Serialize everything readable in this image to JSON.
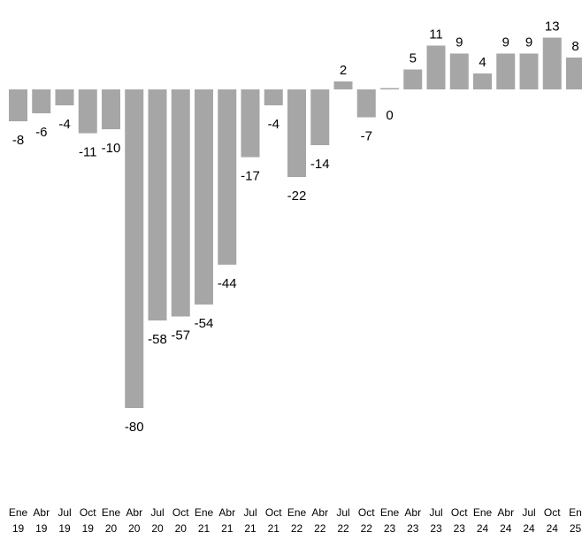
{
  "chart_data": {
    "type": "bar",
    "title": "",
    "xlabel": "",
    "ylabel": "",
    "grid": false,
    "legend": "none",
    "bar_color": "#a6a6a6",
    "categories": [
      [
        "Ene",
        "19"
      ],
      [
        "Abr",
        "19"
      ],
      [
        "Jul",
        "19"
      ],
      [
        "Oct",
        "19"
      ],
      [
        "Ene",
        "20"
      ],
      [
        "Abr",
        "20"
      ],
      [
        "Jul",
        "20"
      ],
      [
        "Oct",
        "20"
      ],
      [
        "Ene",
        "21"
      ],
      [
        "Abr",
        "21"
      ],
      [
        "Jul",
        "21"
      ],
      [
        "Oct",
        "21"
      ],
      [
        "Ene",
        "22"
      ],
      [
        "Abr",
        "22"
      ],
      [
        "Jul",
        "22"
      ],
      [
        "Oct",
        "22"
      ],
      [
        "Ene",
        "23"
      ],
      [
        "Abr",
        "23"
      ],
      [
        "Jul",
        "23"
      ],
      [
        "Oct",
        "23"
      ],
      [
        "Ene",
        "24"
      ],
      [
        "Abr",
        "24"
      ],
      [
        "Jul",
        "24"
      ],
      [
        "Oct",
        "24"
      ],
      [
        "En",
        "25"
      ]
    ],
    "values": [
      -8,
      -6,
      -4,
      -11,
      -10,
      -80,
      -58,
      -57,
      -54,
      -44,
      -17,
      -4,
      -22,
      -14,
      2,
      -7,
      0,
      5,
      11,
      9,
      4,
      9,
      9,
      13,
      8
    ],
    "data_labels": [
      "-8",
      "-6",
      "-4",
      "-11",
      "-10",
      "-80",
      "-58",
      "-57",
      "-54",
      "-44",
      "-17",
      "-4",
      "-22",
      "-14",
      "2",
      "-7",
      "0",
      "5",
      "11",
      "9",
      "4",
      "9",
      "9",
      "13",
      "8"
    ],
    "ylim": [
      -80,
      13
    ]
  }
}
